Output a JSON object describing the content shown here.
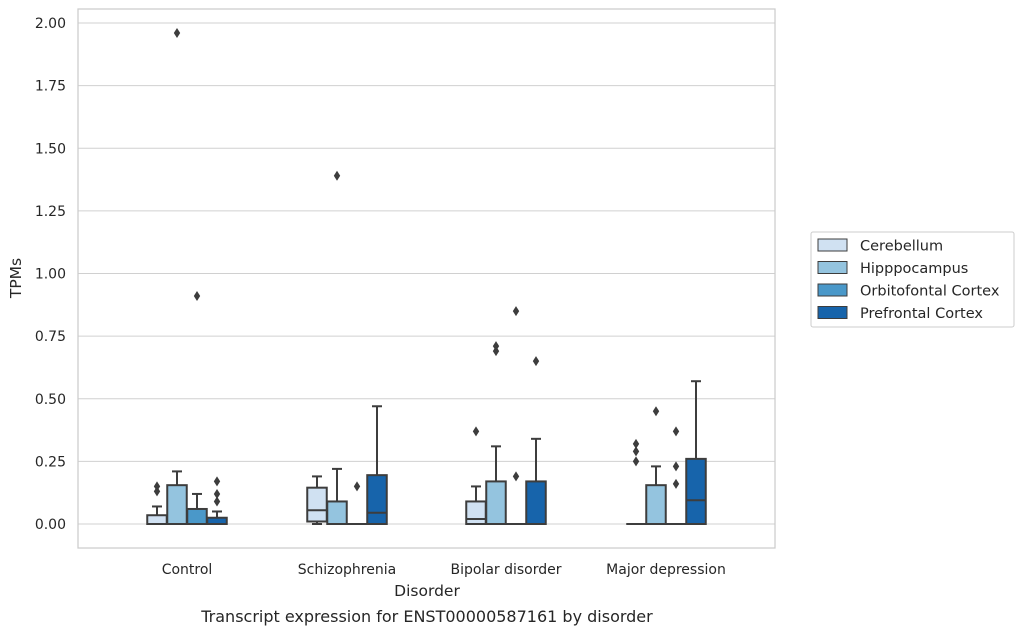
{
  "chart_data": {
    "type": "box",
    "title": "",
    "caption": "Transcript expression for ENST00000587161 by disorder",
    "xlabel": "Disorder",
    "ylabel": "TPMs",
    "ylim": [
      -0.1,
      2.06
    ],
    "yticks": [
      "0.00",
      "0.25",
      "0.50",
      "0.75",
      "1.00",
      "1.25",
      "1.50",
      "1.75",
      "2.00"
    ],
    "categories": [
      "Control",
      "Schizophrenia",
      "Bipolar disorder",
      "Major depression"
    ],
    "grid": "horizontal",
    "legend_position": "right",
    "series": [
      {
        "name": "Cerebellum",
        "color": "#d0e1f2",
        "boxes": [
          {
            "q1": 0.0,
            "median": 0.0,
            "q3": 0.035,
            "whisker_low": 0.0,
            "whisker_high": 0.07,
            "outliers": [
              0.13,
              0.15
            ]
          },
          {
            "q1": 0.01,
            "median": 0.055,
            "q3": 0.145,
            "whisker_low": 0.0,
            "whisker_high": 0.19,
            "outliers": []
          },
          {
            "q1": 0.0,
            "median": 0.02,
            "q3": 0.09,
            "whisker_low": 0.0,
            "whisker_high": 0.15,
            "outliers": [
              0.37
            ]
          },
          {
            "q1": 0.0,
            "median": 0.0,
            "q3": 0.0,
            "whisker_low": 0.0,
            "whisker_high": 0.0,
            "outliers": [
              0.25,
              0.29,
              0.32
            ]
          }
        ]
      },
      {
        "name": "Hipppocampus",
        "color": "#94c4df",
        "boxes": [
          {
            "q1": 0.0,
            "median": 0.0,
            "q3": 0.155,
            "whisker_low": 0.0,
            "whisker_high": 0.21,
            "outliers": [
              1.96
            ]
          },
          {
            "q1": 0.0,
            "median": 0.0,
            "q3": 0.09,
            "whisker_low": 0.0,
            "whisker_high": 0.22,
            "outliers": [
              1.39
            ]
          },
          {
            "q1": 0.0,
            "median": 0.0,
            "q3": 0.17,
            "whisker_low": 0.0,
            "whisker_high": 0.31,
            "outliers": [
              0.69,
              0.71
            ]
          },
          {
            "q1": 0.0,
            "median": 0.0,
            "q3": 0.155,
            "whisker_low": 0.0,
            "whisker_high": 0.23,
            "outliers": [
              0.45
            ]
          }
        ]
      },
      {
        "name": "Orbitofontal Cortex",
        "color": "#4a98c9",
        "boxes": [
          {
            "q1": 0.0,
            "median": 0.0,
            "q3": 0.06,
            "whisker_low": 0.0,
            "whisker_high": 0.12,
            "outliers": [
              0.91
            ]
          },
          {
            "q1": 0.0,
            "median": 0.0,
            "q3": 0.0,
            "whisker_low": 0.0,
            "whisker_high": 0.0,
            "outliers": [
              0.15
            ]
          },
          {
            "q1": 0.0,
            "median": 0.0,
            "q3": 0.0,
            "whisker_low": 0.0,
            "whisker_high": 0.0,
            "outliers": [
              0.19,
              0.85
            ]
          },
          {
            "q1": 0.0,
            "median": 0.0,
            "q3": 0.0,
            "whisker_low": 0.0,
            "whisker_high": 0.0,
            "outliers": [
              0.16,
              0.23,
              0.37
            ]
          }
        ]
      },
      {
        "name": "Prefrontal Cortex",
        "color": "#1764ab",
        "boxes": [
          {
            "q1": 0.0,
            "median": 0.0,
            "q3": 0.025,
            "whisker_low": 0.0,
            "whisker_high": 0.05,
            "outliers": [
              0.09,
              0.12,
              0.17
            ]
          },
          {
            "q1": 0.0,
            "median": 0.045,
            "q3": 0.195,
            "whisker_low": 0.0,
            "whisker_high": 0.47,
            "outliers": []
          },
          {
            "q1": 0.0,
            "median": 0.0,
            "q3": 0.17,
            "whisker_low": 0.0,
            "whisker_high": 0.34,
            "outliers": [
              0.65
            ]
          },
          {
            "q1": 0.0,
            "median": 0.095,
            "q3": 0.26,
            "whisker_low": 0.0,
            "whisker_high": 0.57,
            "outliers": []
          }
        ]
      }
    ]
  }
}
